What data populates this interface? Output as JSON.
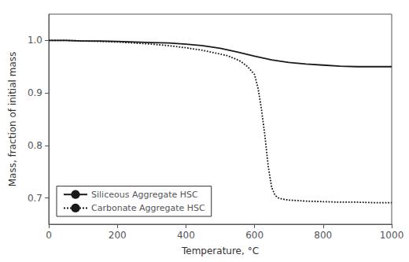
{
  "chart_data": {
    "type": "line",
    "xlabel": "Temperature, °C",
    "ylabel": "Mass, fraction of initial mass",
    "xlim": [
      0,
      1000
    ],
    "ylim": [
      0.65,
      1.05
    ],
    "xticks": [
      0,
      200,
      400,
      600,
      800,
      1000
    ],
    "yticks": [
      0.7,
      0.8,
      0.9,
      {
        "value": 1.0,
        "label": "1.0"
      }
    ],
    "grid": false,
    "legend": "lower left",
    "series": [
      {
        "name": "Siliceous Aggregate HSC",
        "color": "#1a1a1a",
        "line_style": "solid",
        "x": [
          0,
          50,
          100,
          150,
          200,
          250,
          300,
          350,
          400,
          450,
          500,
          550,
          600,
          650,
          700,
          750,
          800,
          850,
          900,
          950,
          1000
        ],
        "values": [
          1.0,
          1.0,
          0.999,
          0.999,
          0.998,
          0.997,
          0.996,
          0.995,
          0.993,
          0.99,
          0.985,
          0.978,
          0.97,
          0.963,
          0.958,
          0.955,
          0.953,
          0.951,
          0.95,
          0.95,
          0.95
        ]
      },
      {
        "name": "Carbonate Aggregate HSC",
        "color": "#1a1a1a",
        "line_style": "dotted",
        "x": [
          0,
          50,
          100,
          150,
          200,
          250,
          300,
          350,
          400,
          450,
          500,
          520,
          540,
          560,
          580,
          600,
          610,
          620,
          630,
          640,
          650,
          660,
          670,
          680,
          700,
          750,
          800,
          850,
          900,
          950,
          1000
        ],
        "values": [
          1.0,
          1.0,
          0.999,
          0.998,
          0.997,
          0.995,
          0.993,
          0.99,
          0.986,
          0.981,
          0.974,
          0.971,
          0.966,
          0.96,
          0.95,
          0.935,
          0.91,
          0.87,
          0.82,
          0.76,
          0.72,
          0.705,
          0.7,
          0.698,
          0.696,
          0.694,
          0.693,
          0.692,
          0.692,
          0.691,
          0.691
        ]
      }
    ]
  }
}
